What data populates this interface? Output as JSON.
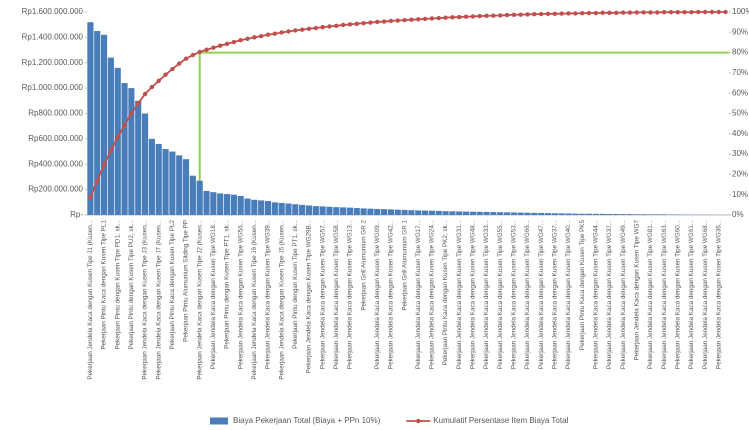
{
  "chart_data": {
    "type": "pareto",
    "categories": [
      "Pekerjaan Jendela Kaca dengan Kusen Tipe J1 (Kusen...",
      null,
      "Pekerjaan Pintu Kaca dengan Kusen Tipe PL1",
      null,
      "Pekerjaan Pintu dengan Kusen Tipe PD1, sk...",
      null,
      "Pekerjaan Pintu dengan Kusen Tipe PU2, sk...",
      null,
      "Pekerjaan Jendela Kaca dengan Kusen Tipe J3 (Kusen...",
      null,
      "Pekerjaan Jendela Kaca dengan Kusen Tipe J7 (Kusen...",
      null,
      "Pekerjaan Pintu Kaca dengan Kusen Tipe PL2",
      null,
      "Pekerjaan Pintu Alumunium Sliding Tipe PP",
      null,
      "Pekerjaan Jendela Kaca dengan Kusen Tipe J2 (Kusen...",
      null,
      "Pekerjaan Jendela Kaca dengan Kusen Tipe WG18...",
      null,
      "Pekerjaan Pintu dengan Kusen Tipe PT1, sk...",
      null,
      "Pekerjaan Jendela Kaca dengan Kusen Tipe WG56...",
      null,
      "Pekerjaan Jendela Kaca dengan Kusen Tipe J6 (Kusen...",
      null,
      "Pekerjaan Jendela Kaca dengan Kusen Tipe WG39...",
      null,
      "Pekerjaan Jendela Kaca dengan Kusen Tipe J5 (Kusen...",
      null,
      "Pekerjaan Pintu dengan Kusen Tipe PT1, sk...",
      null,
      "Pekerjaan Jendela Kaca dengan Kusen Tipe WG29B...",
      null,
      "Pekerjaan Jendela Kaca dengan Kusen Tipe WG57...",
      null,
      "Pekerjaan Jendela Kaca dengan Kusen Tipe WG58...",
      null,
      "Pekerjaan Jendela Kaca dengan Kusen Tipe WG13...",
      null,
      "Pekerjaan Grill Alumunium GR 2",
      null,
      "Pekerjaan Jendela Kaca dengan Kusen Tipe WG09...",
      null,
      "Pekerjaan Jendela Kaca dengan Kusen Tipe WG42...",
      null,
      "Pekerjaan Grill Alumunium GR 1",
      null,
      "Pekerjaan Jendela Kaca dengan Kusen Tipe WG17...",
      null,
      "Pekerjaan Jendela Kaca dengan Kusen Tipe WG24...",
      null,
      "Pekerjaan Pintu Kaca dengan Kusen Tipe PK2, sk...",
      null,
      "Pekerjaan Jendela Kaca dengan Kusen Tipe WG31...",
      null,
      "Pekerjaan Jendela Kaca dengan Kusen Tipe WG48...",
      null,
      "Pekerjaan Jendela Kaca dengan Kusen Tipe WG33...",
      null,
      "Pekerjaan Jendela Kaca dengan Kusen Tipe WG55...",
      null,
      "Pekerjaan Jendela Kaca dengan Kusen Tipe WG53...",
      null,
      "Pekerjaan Jendela Kaca dengan Kusen Tipe WG66...",
      null,
      "Pekerjaan Jendela Kaca dengan Kusen Tipe WG47...",
      null,
      "Pekerjaan Jendela Kaca dengan Kusen Tipe WG37...",
      null,
      "Pekerjaan Jendela Kaca dengan Kusen Tipe WG40...",
      null,
      "Pekerjaan Pintu Kaca dengan Kusen Tipe PK5",
      null,
      "Pekerjaan Jendela Kaca dengan Kusen Tipe WG44...",
      null,
      "Pekerjaan Jendela Kaca dengan Kusen Tipe WG37...",
      null,
      "Pekerjaan Jendela Kaca dengan Kusen Tipe WG49...",
      null,
      "Pekerjaan Jendela Kaca dengan Kusen Tipe WG7",
      null,
      "Pekerjaan Jendela Kaca dengan Kusen Tipe WG81...",
      null,
      "Pekerjaan Jendela Kaca dengan Kusen Tipe WG63...",
      null,
      "Pekerjaan Jendela Kaca dengan Kusen Tipe WG60...",
      null,
      "Pekerjaan Jendela Kaca dengan Kusen Tipe WG61...",
      null,
      "Pekerjaan Jendela Kaca dengan Kusen Tipe WG68...",
      null,
      "Pekerjaan Jendela Kaca dengan Kusen Tipe WG36...",
      null
    ],
    "series": [
      {
        "name": "Biaya Pekerjaan Total (Biaya + PPn 10%)",
        "type": "bar",
        "color": "#4a7ebb",
        "axis": "y",
        "values": [
          1520000000,
          1450000000,
          1420000000,
          1240000000,
          1160000000,
          1040000000,
          1000000000,
          900000000,
          800000000,
          600000000,
          560000000,
          520000000,
          500000000,
          470000000,
          440000000,
          310000000,
          270000000,
          190000000,
          180000000,
          170000000,
          165000000,
          160000000,
          150000000,
          130000000,
          120000000,
          115000000,
          110000000,
          100000000,
          95000000,
          90000000,
          85000000,
          80000000,
          75000000,
          70000000,
          68000000,
          65000000,
          62000000,
          60000000,
          58000000,
          55000000,
          52000000,
          50000000,
          48000000,
          46000000,
          44000000,
          42000000,
          40000000,
          38000000,
          36000000,
          35000000,
          34000000,
          32000000,
          30000000,
          29000000,
          28000000,
          27000000,
          26000000,
          25000000,
          24000000,
          23000000,
          22000000,
          21000000,
          20000000,
          19000000,
          18000000,
          17000000,
          16000000,
          15000000,
          14000000,
          13000000,
          12000000,
          11000000,
          10000000,
          10000000,
          9000000,
          9000000,
          8000000,
          8000000,
          7000000,
          7000000,
          6000000,
          6000000,
          5000000,
          5000000,
          5000000,
          4000000,
          4000000,
          3000000,
          3000000,
          2000000,
          2000000,
          2000000,
          1000000,
          1000000
        ]
      },
      {
        "name": "Kumulatif Persentase Item Biaya Total",
        "type": "line",
        "color": "#c0504d",
        "axis": "y2",
        "values": [
          8.6,
          16.8,
          24.8,
          31.8,
          38.4,
          44.3,
          50.0,
          55.0,
          59.6,
          63.0,
          66.1,
          69.1,
          71.9,
          74.6,
          77.0,
          78.8,
          80.3,
          81.4,
          82.4,
          83.4,
          84.3,
          85.2,
          86.1,
          86.8,
          87.5,
          88.1,
          88.8,
          89.3,
          89.9,
          90.4,
          90.9,
          91.3,
          91.7,
          92.1,
          92.5,
          92.9,
          93.2,
          93.6,
          93.9,
          94.2,
          94.5,
          94.8,
          95.1,
          95.3,
          95.6,
          95.8,
          96.0,
          96.2,
          96.4,
          96.6,
          96.8,
          97.0,
          97.2,
          97.4,
          97.5,
          97.7,
          97.8,
          98.0,
          98.1,
          98.2,
          98.3,
          98.5,
          98.6,
          98.7,
          98.8,
          98.9,
          99.0,
          99.1,
          99.1,
          99.2,
          99.3,
          99.3,
          99.4,
          99.5,
          99.5,
          99.6,
          99.6,
          99.6,
          99.7,
          99.7,
          99.8,
          99.8,
          99.8,
          99.8,
          99.9,
          99.9,
          99.9,
          99.9,
          99.9,
          100,
          100,
          100,
          100,
          100
        ]
      }
    ],
    "ylim": [
      0,
      1600000000
    ],
    "yticks": [
      {
        "value": 0,
        "label": "Rp-"
      },
      {
        "value": 200000000,
        "label": "Rp200.000.000"
      },
      {
        "value": 400000000,
        "label": "Rp400.000.000"
      },
      {
        "value": 600000000,
        "label": "Rp600.000.000"
      },
      {
        "value": 800000000,
        "label": "Rp800.000.000"
      },
      {
        "value": 1000000000,
        "label": "Rp1.000.000.000"
      },
      {
        "value": 1200000000,
        "label": "Rp1.200.000.000"
      },
      {
        "value": 1400000000,
        "label": "Rp1.400.000.000"
      },
      {
        "value": 1600000000,
        "label": "Rp1.600.000.000"
      }
    ],
    "y2lim": [
      0,
      100
    ],
    "y2ticks": [
      {
        "value": 0,
        "label": "0%"
      },
      {
        "value": 10,
        "label": "10%"
      },
      {
        "value": 20,
        "label": "20%"
      },
      {
        "value": 30,
        "label": "30%"
      },
      {
        "value": 40,
        "label": "40%"
      },
      {
        "value": 50,
        "label": "50%"
      },
      {
        "value": 60,
        "label": "60%"
      },
      {
        "value": 70,
        "label": "70%"
      },
      {
        "value": 80,
        "label": "80%"
      },
      {
        "value": 90,
        "label": "90%"
      },
      {
        "value": 100,
        "label": "100%"
      }
    ],
    "threshold": 80,
    "threshold_color": "#92d050",
    "grid": false,
    "legend": "bottom"
  }
}
